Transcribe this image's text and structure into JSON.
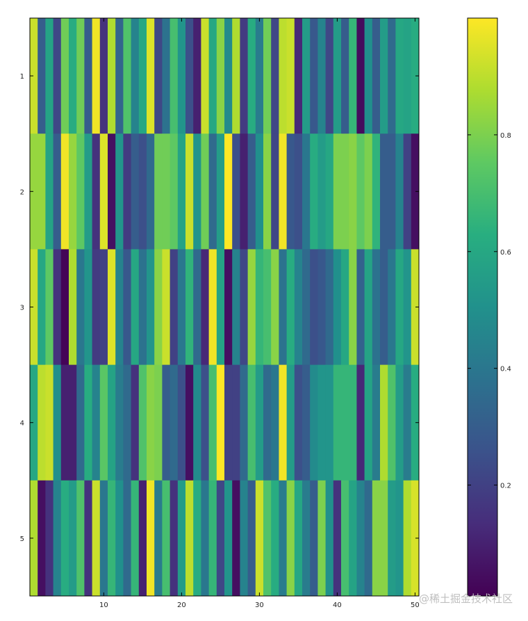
{
  "chart_data": {
    "type": "heatmap",
    "title": "",
    "xlabel": "",
    "ylabel": "",
    "x_range": [
      0.5,
      50.5
    ],
    "y_range": [
      0.5,
      5.5
    ],
    "x_ticks": [
      10,
      20,
      30,
      40,
      50
    ],
    "y_ticks": [
      1,
      2,
      3,
      4,
      5
    ],
    "colormap": "viridis",
    "colorbar": {
      "range": [
        0.01,
        1.0
      ],
      "ticks": [
        0.2,
        0.4,
        0.6,
        0.8
      ],
      "tick_labels": [
        "0.2",
        "0.4",
        "0.6",
        "0.8"
      ]
    },
    "rows": [
      [
        0.92,
        0.3,
        0.58,
        0.22,
        0.78,
        0.62,
        0.78,
        0.3,
        0.98,
        0.15,
        0.88,
        0.33,
        0.72,
        0.45,
        0.6,
        0.95,
        0.22,
        0.38,
        0.7,
        0.52,
        0.25,
        0.1,
        0.92,
        0.6,
        0.82,
        0.48,
        0.88,
        0.18,
        0.62,
        0.42,
        0.78,
        0.22,
        0.9,
        0.92,
        0.12,
        0.55,
        0.28,
        0.45,
        0.22,
        0.55,
        0.3,
        0.66,
        0.04,
        0.5,
        0.3,
        0.55,
        0.35,
        0.6,
        0.58,
        0.62
      ],
      [
        0.84,
        0.84,
        0.58,
        0.3,
        0.98,
        0.84,
        0.75,
        0.55,
        0.15,
        0.95,
        0.05,
        0.52,
        0.18,
        0.3,
        0.25,
        0.35,
        0.78,
        0.78,
        0.75,
        0.58,
        0.92,
        0.52,
        0.78,
        0.35,
        0.55,
        1.0,
        0.25,
        0.1,
        0.3,
        0.5,
        0.82,
        0.22,
        0.98,
        0.28,
        0.25,
        0.4,
        0.62,
        0.55,
        0.6,
        0.8,
        0.8,
        0.82,
        0.75,
        0.8,
        0.65,
        0.3,
        0.3,
        0.45,
        0.2,
        0.05
      ],
      [
        0.92,
        0.6,
        0.75,
        0.15,
        0.02,
        0.88,
        0.4,
        0.52,
        0.18,
        0.2,
        0.95,
        0.45,
        0.28,
        0.6,
        0.38,
        0.52,
        0.82,
        0.92,
        0.2,
        0.4,
        0.65,
        0.35,
        0.12,
        0.98,
        0.58,
        0.05,
        0.45,
        0.22,
        0.84,
        0.66,
        0.7,
        0.82,
        0.38,
        0.62,
        0.45,
        0.35,
        0.25,
        0.28,
        0.35,
        0.5,
        0.6,
        0.82,
        0.32,
        0.58,
        0.38,
        0.3,
        0.4,
        0.6,
        0.52,
        0.92
      ],
      [
        0.6,
        0.9,
        0.92,
        0.5,
        0.1,
        0.1,
        0.35,
        0.62,
        0.45,
        0.74,
        0.58,
        0.42,
        0.35,
        0.15,
        0.72,
        0.82,
        0.8,
        0.3,
        0.35,
        0.25,
        0.05,
        0.48,
        0.25,
        0.7,
        1.0,
        0.2,
        0.2,
        0.35,
        0.7,
        0.55,
        0.35,
        0.4,
        0.98,
        0.55,
        0.25,
        0.3,
        0.48,
        0.52,
        0.52,
        0.66,
        0.66,
        0.66,
        0.12,
        0.58,
        0.42,
        0.88,
        0.72,
        0.55,
        0.42,
        0.62
      ],
      [
        0.88,
        0.05,
        0.15,
        0.45,
        0.62,
        0.55,
        0.72,
        0.15,
        0.92,
        0.4,
        0.66,
        0.5,
        0.35,
        0.66,
        0.1,
        0.98,
        0.42,
        0.7,
        0.15,
        0.55,
        0.9,
        0.62,
        0.4,
        0.66,
        0.22,
        0.52,
        0.05,
        0.45,
        0.3,
        0.92,
        0.72,
        0.62,
        0.42,
        0.82,
        0.6,
        0.42,
        0.3,
        0.8,
        0.5,
        0.15,
        0.7,
        0.58,
        0.45,
        0.35,
        0.82,
        0.82,
        0.55,
        0.52,
        0.88,
        0.94
      ]
    ]
  },
  "watermark": "@稀土掘金技术社区"
}
